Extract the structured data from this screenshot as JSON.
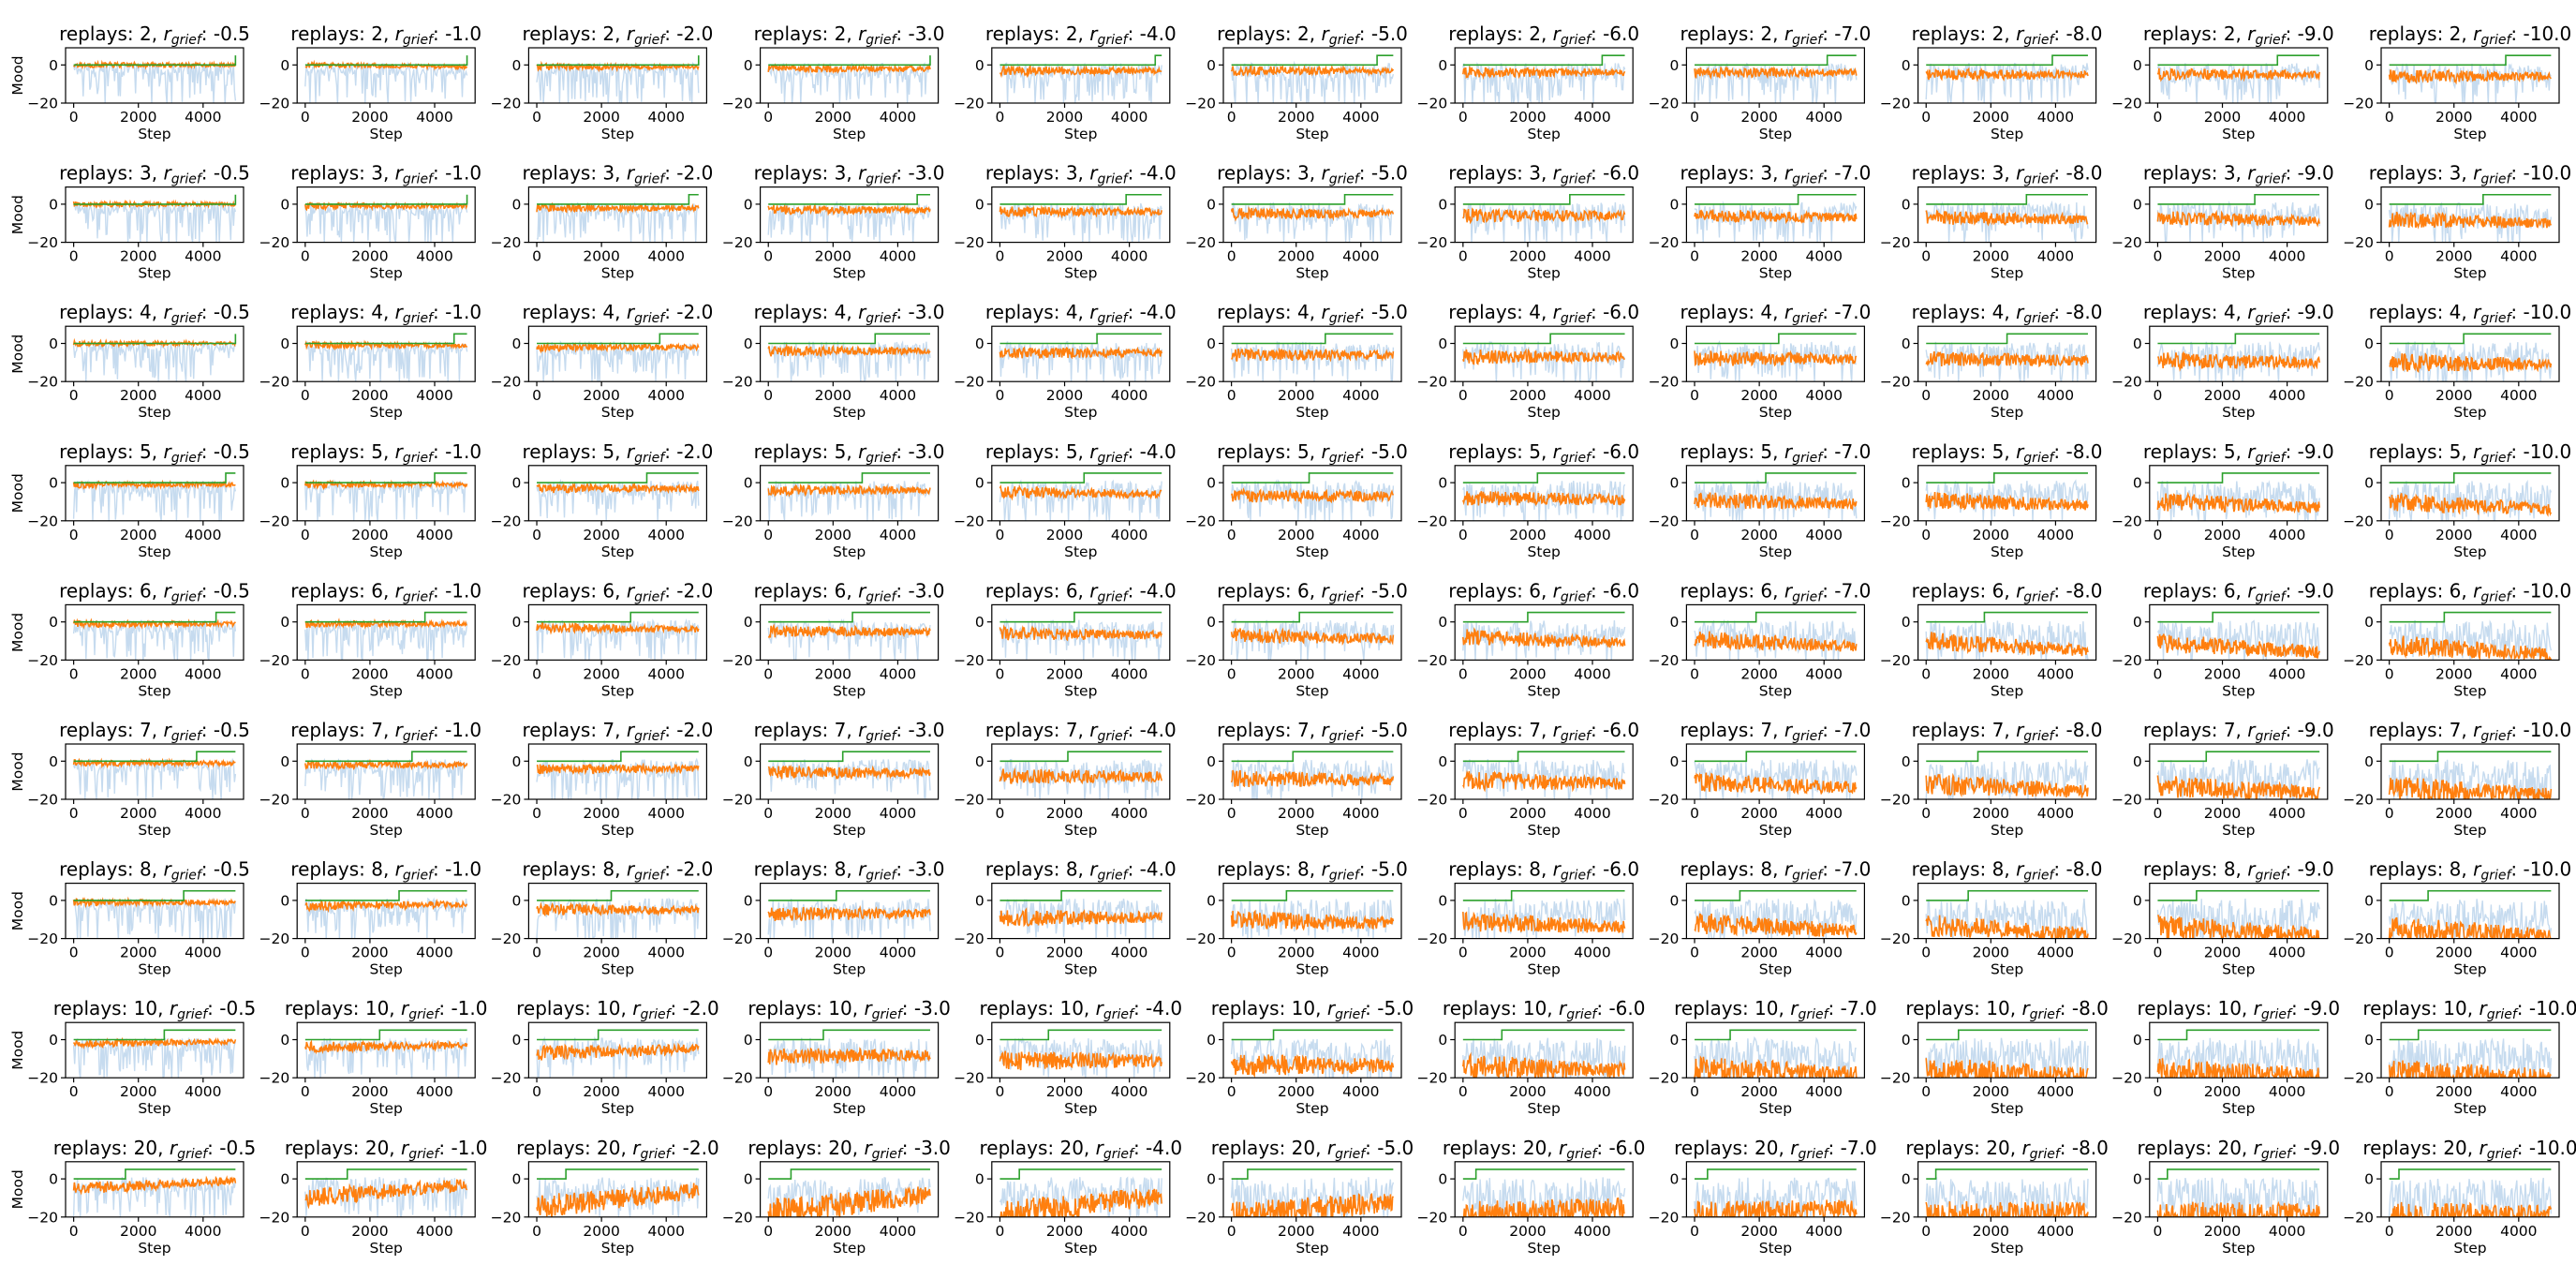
{
  "figure": {
    "xlabel": "Step",
    "ylabel": "Mood",
    "title_prefix": "replays: ",
    "title_param_symbol": "r",
    "title_param_subscript": "grief",
    "colors": {
      "raw_series": "#c6dbef",
      "smoothed_series": "#ff7f0e",
      "threshold_series": "#2ca02c"
    }
  },
  "chart_data": {
    "type": "line",
    "layout": "grid",
    "rows_param": "replays",
    "cols_param": "r_grief",
    "replays": [
      2,
      3,
      4,
      5,
      6,
      7,
      8,
      10,
      20
    ],
    "r_grief": [
      -0.5,
      -1.0,
      -2.0,
      -3.0,
      -4.0,
      -5.0,
      -6.0,
      -7.0,
      -8.0,
      -9.0,
      -10.0
    ],
    "r_grief_labels": [
      "-0.5",
      "-1.0",
      "-2.0",
      "-3.0",
      "-4.0",
      "-5.0",
      "-6.0",
      "-7.0",
      "-8.0",
      "-9.0",
      "-10.0"
    ],
    "x": {
      "label": "Step",
      "range": [
        -250,
        5250
      ],
      "ticks": [
        0,
        2000,
        4000
      ]
    },
    "y": {
      "label": "Mood",
      "range": [
        -20,
        9
      ],
      "ticks": [
        -20,
        0
      ]
    },
    "threshold_switch_step": [
      [
        5000,
        5000,
        5000,
        5000,
        4800,
        4500,
        4300,
        4100,
        3900,
        3700,
        3600
      ],
      [
        5000,
        5000,
        4700,
        4600,
        3900,
        3500,
        3300,
        3200,
        3100,
        3000,
        2900
      ],
      [
        5000,
        4600,
        3800,
        3300,
        3000,
        2900,
        2700,
        2600,
        2500,
        2400,
        2300
      ],
      [
        4700,
        4000,
        3400,
        2900,
        2600,
        2400,
        2300,
        2200,
        2100,
        2000,
        2000
      ],
      [
        4400,
        3700,
        2900,
        2600,
        2300,
        2100,
        2000,
        1900,
        1800,
        1700,
        1700
      ],
      [
        3800,
        3300,
        2600,
        2300,
        2100,
        1900,
        1700,
        1600,
        1600,
        1500,
        1500
      ],
      [
        3400,
        2900,
        2300,
        2100,
        1900,
        1700,
        1500,
        1400,
        1300,
        1200,
        1200
      ],
      [
        2800,
        2300,
        1900,
        1700,
        1500,
        1300,
        1200,
        1100,
        1000,
        900,
        900
      ],
      [
        1600,
        1300,
        900,
        700,
        600,
        500,
        400,
        400,
        300,
        300,
        300
      ]
    ],
    "threshold_levels": {
      "low": 0,
      "high": 5
    },
    "smoothed_mood": {
      "description_points": [
        "start",
        "end"
      ],
      "start": [
        [
          0,
          0,
          -1,
          -2,
          -3,
          -3,
          -4,
          -4,
          -5,
          -5,
          -6
        ],
        [
          0,
          -1,
          -2,
          -3,
          -4,
          -5,
          -6,
          -6,
          -7,
          -7,
          -8
        ],
        [
          0,
          -1,
          -2,
          -4,
          -5,
          -6,
          -7,
          -8,
          -8,
          -9,
          -10
        ],
        [
          -1,
          -1,
          -3,
          -4,
          -5,
          -7,
          -8,
          -9,
          -9,
          -10,
          -10
        ],
        [
          -1,
          -1,
          -3,
          -5,
          -6,
          -7,
          -8,
          -9,
          -10,
          -11,
          -12
        ],
        [
          -1,
          -2,
          -4,
          -6,
          -8,
          -9,
          -10,
          -11,
          -12,
          -13,
          -14
        ],
        [
          -1,
          -3,
          -5,
          -7,
          -9,
          -10,
          -11,
          -12,
          -13,
          -14,
          -15
        ],
        [
          -2,
          -4,
          -7,
          -9,
          -11,
          -13,
          -14,
          -15,
          -16,
          -17,
          -18
        ],
        [
          -5,
          -10,
          -15,
          -18,
          -19,
          -20,
          -20,
          -20,
          -20,
          -20,
          -20
        ]
      ],
      "end": [
        [
          0,
          -1,
          -1,
          -2,
          -3,
          -3,
          -4,
          -4,
          -5,
          -5,
          -6
        ],
        [
          0,
          -1,
          -2,
          -3,
          -4,
          -5,
          -6,
          -7,
          -8,
          -9,
          -10
        ],
        [
          0,
          -1,
          -2,
          -4,
          -5,
          -6,
          -7,
          -8,
          -9,
          -10,
          -11
        ],
        [
          -1,
          -1,
          -3,
          -4,
          -6,
          -7,
          -9,
          -11,
          -12,
          -13,
          -14
        ],
        [
          -1,
          -1,
          -4,
          -5,
          -7,
          -9,
          -11,
          -13,
          -15,
          -16,
          -17
        ],
        [
          -1,
          -2,
          -4,
          -6,
          -8,
          -10,
          -12,
          -14,
          -16,
          -17,
          -18
        ],
        [
          -1,
          -2,
          -5,
          -7,
          -9,
          -12,
          -14,
          -16,
          -18,
          -18,
          -19
        ],
        [
          -1,
          -3,
          -5,
          -8,
          -11,
          -14,
          -16,
          -18,
          -19,
          -19,
          -20
        ],
        [
          -1,
          -3,
          -6,
          -8,
          -9,
          -12,
          -15,
          -16,
          -17,
          -18,
          -19
        ]
      ]
    }
  }
}
